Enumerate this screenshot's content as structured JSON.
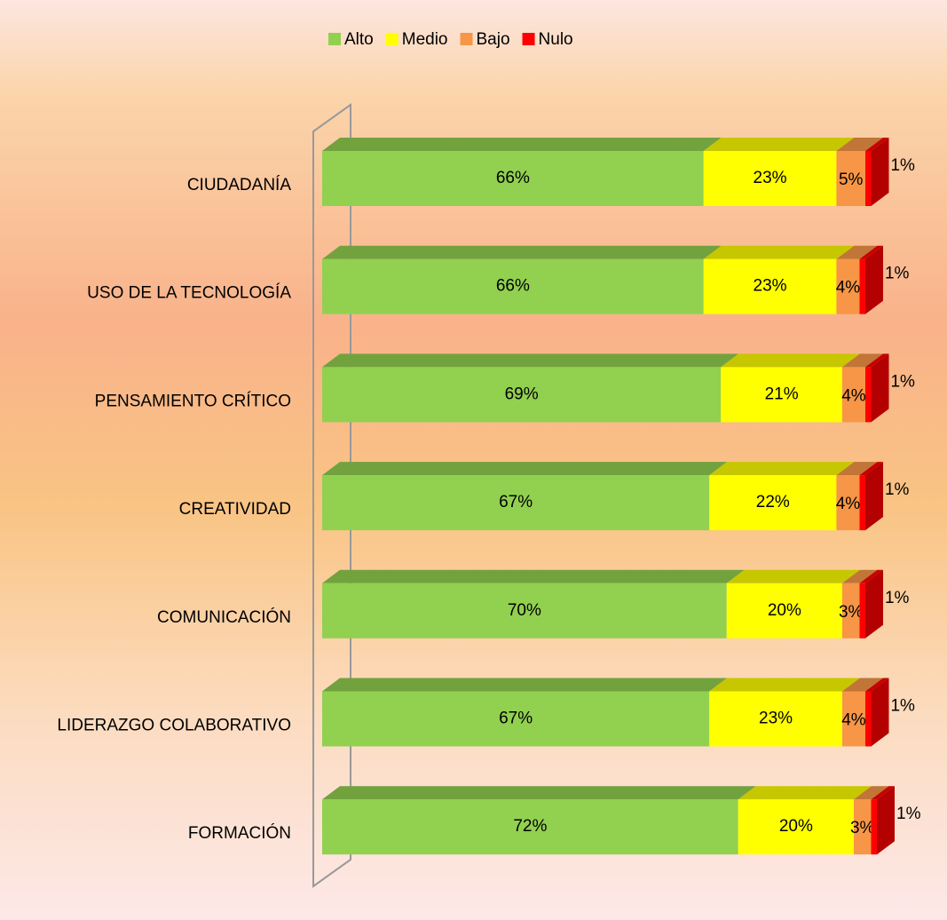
{
  "chart_data": {
    "type": "bar",
    "orientation": "horizontal",
    "stacked": true,
    "categories": [
      "CIUDADANÍA",
      "USO DE LA TECNOLOGÍA",
      "PENSAMIENTO CRÍTICO",
      "CREATIVIDAD",
      "COMUNICACIÓN",
      "LIDERAZGO COLABORATIVO",
      "FORMACIÓN"
    ],
    "series": [
      {
        "name": "Alto",
        "color": "#92d050",
        "values": [
          66,
          66,
          69,
          67,
          70,
          67,
          72
        ],
        "value_labels": [
          "66%",
          "66%",
          "69%",
          "67%",
          "70%",
          "67%",
          "72%"
        ]
      },
      {
        "name": "Medio",
        "color": "#ffff00",
        "values": [
          23,
          23,
          21,
          22,
          20,
          23,
          20
        ],
        "value_labels": [
          "23%",
          "23%",
          "21%",
          "22%",
          "20%",
          "23%",
          "20%"
        ]
      },
      {
        "name": "Bajo",
        "color": "#f79646",
        "values": [
          5,
          4,
          4,
          4,
          3,
          4,
          3
        ],
        "value_labels": [
          "5%",
          "4%",
          "4%",
          "4%",
          "3%",
          "4%",
          "3%"
        ]
      },
      {
        "name": "Nulo",
        "color": "#ff0000",
        "values": [
          1,
          1,
          1,
          1,
          1,
          1,
          1
        ],
        "value_labels": [
          "1%",
          "1%",
          "1%",
          "1%",
          "1%",
          "1%",
          "1%"
        ]
      }
    ],
    "legend": "top"
  }
}
